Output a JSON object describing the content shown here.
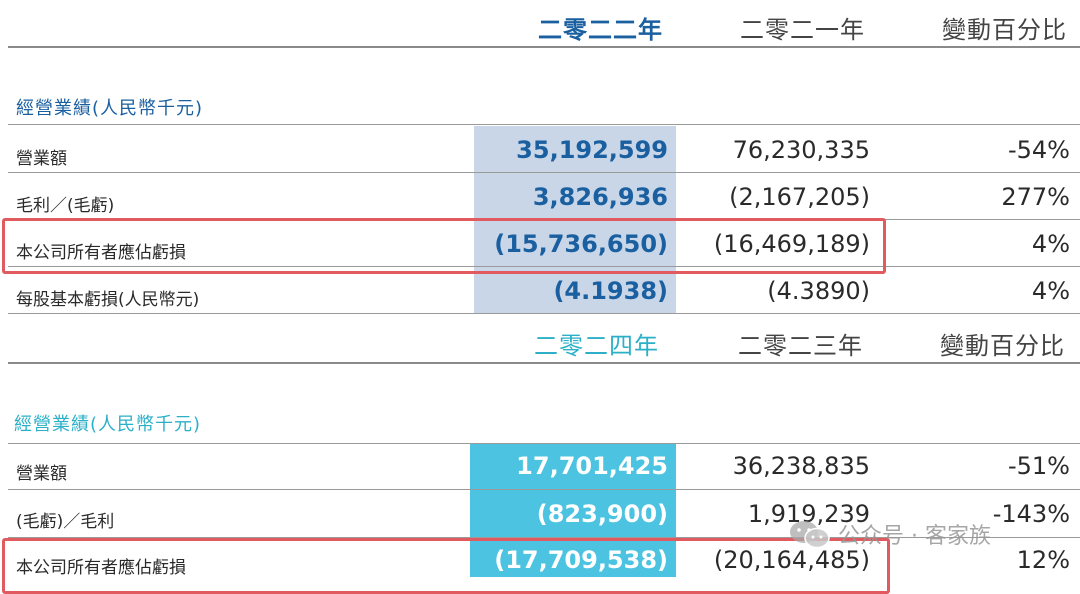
{
  "table1": {
    "headers": [
      "二零二二年",
      "二零二一年",
      "變動百分比"
    ],
    "section_title": "經營業績(人民幣千元)",
    "rows": [
      {
        "label": "營業額",
        "values": [
          "35,192,599",
          "76,230,335",
          "-54%"
        ]
      },
      {
        "label": "毛利／(毛虧)",
        "values": [
          "3,826,936",
          "(2,167,205)",
          "277%"
        ]
      },
      {
        "label": "本公司所有者應佔虧損",
        "values": [
          "(15,736,650)",
          "(16,469,189)",
          "4%"
        ]
      },
      {
        "label": "每股基本虧損(人民幣元)",
        "values": [
          "(4.1938)",
          "(4.3890)",
          "4%"
        ]
      }
    ]
  },
  "table2": {
    "headers": [
      "二零二四年",
      "二零二三年",
      "變動百分比"
    ],
    "section_title": "經營業績(人民幣千元)",
    "rows": [
      {
        "label": "營業額",
        "values": [
          "17,701,425",
          "36,238,835",
          "-51%"
        ]
      },
      {
        "label": "(毛虧)／毛利",
        "values": [
          "(823,900)",
          "1,919,239",
          "-143%"
        ]
      },
      {
        "label": "本公司所有者應佔虧損",
        "values": [
          "(17,709,538)",
          "(20,164,485)",
          "12%"
        ]
      }
    ]
  },
  "watermark": {
    "text": "公众号 · 客家族",
    "icon": "wechat-icon"
  },
  "colors": {
    "accent_blue": "#1a5fa0",
    "teal_header": "#2bb0c8",
    "highlight_box": "#e05a5f"
  }
}
